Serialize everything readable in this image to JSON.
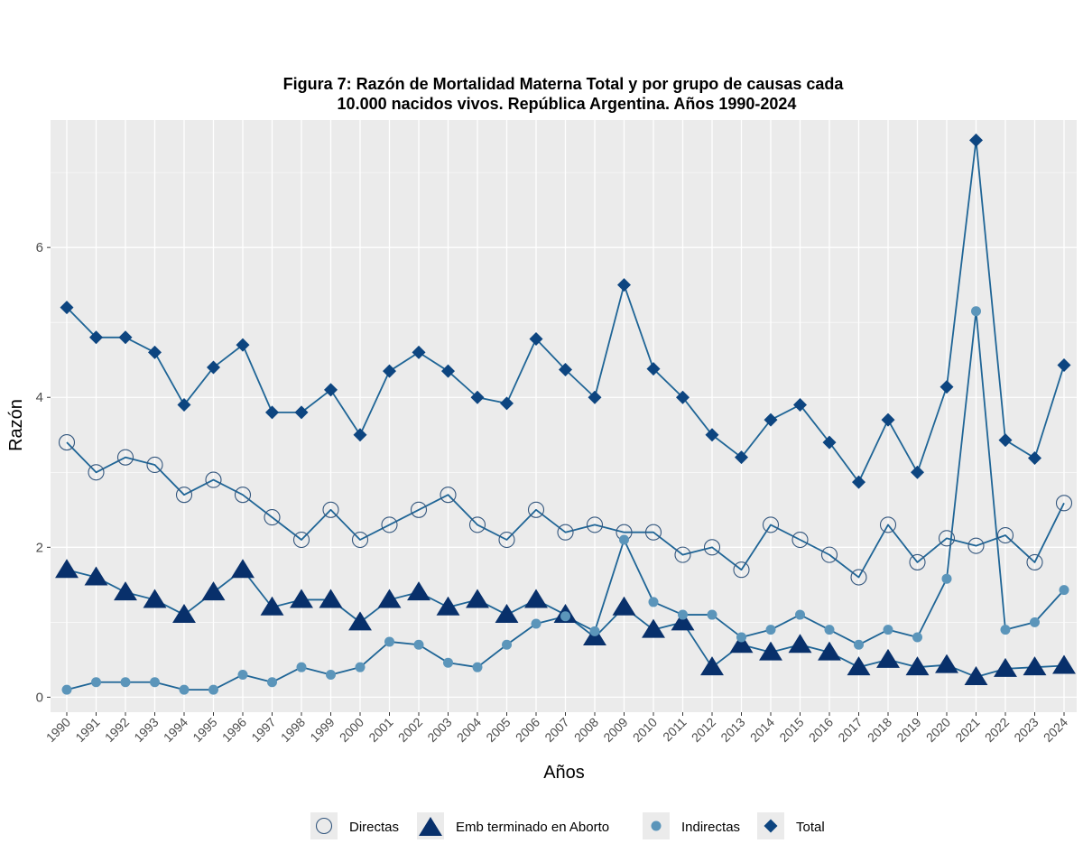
{
  "chart_data": {
    "type": "line",
    "title_line1": "Figura 7: Razón de Mortalidad Materna Total y por grupo de causas cada",
    "title_line2": "10.000 nacidos vivos. República Argentina. Años 1990-2024",
    "xlabel": "Años",
    "ylabel": "Razón",
    "ylim": [
      -0.2,
      7.7
    ],
    "yticks": [
      0,
      2,
      4,
      6
    ],
    "grid": true,
    "legend_position": "bottom",
    "categories": [
      "1990",
      "1991",
      "1992",
      "1993",
      "1994",
      "1995",
      "1996",
      "1997",
      "1998",
      "1999",
      "2000",
      "2001",
      "2002",
      "2003",
      "2004",
      "2005",
      "2006",
      "2007",
      "2008",
      "2009",
      "2010",
      "2011",
      "2012",
      "2013",
      "2014",
      "2015",
      "2016",
      "2017",
      "2018",
      "2019",
      "2020",
      "2021",
      "2022",
      "2023",
      "2024"
    ],
    "series": [
      {
        "name": "Directas",
        "marker": "open-circle",
        "values": [
          3.4,
          3.0,
          3.2,
          3.1,
          2.7,
          2.9,
          2.7,
          2.4,
          2.1,
          2.5,
          2.1,
          2.3,
          2.5,
          2.7,
          2.3,
          2.1,
          2.5,
          2.2,
          2.3,
          2.2,
          2.2,
          1.9,
          2.0,
          1.7,
          2.3,
          2.1,
          1.9,
          1.6,
          2.3,
          1.8,
          2.12,
          2.02,
          2.16,
          1.8,
          2.59
        ]
      },
      {
        "name": "Emb terminado en Aborto",
        "marker": "triangle",
        "values": [
          1.7,
          1.6,
          1.4,
          1.3,
          1.1,
          1.4,
          1.7,
          1.2,
          1.3,
          1.3,
          1.0,
          1.3,
          1.4,
          1.2,
          1.3,
          1.1,
          1.3,
          1.1,
          0.8,
          1.2,
          0.9,
          1.0,
          0.4,
          0.7,
          0.6,
          0.7,
          0.6,
          0.4,
          0.5,
          0.4,
          0.43,
          0.27,
          0.38,
          0.4,
          0.42
        ]
      },
      {
        "name": "Indirectas",
        "marker": "filled-circle",
        "values": [
          0.1,
          0.2,
          0.2,
          0.2,
          0.1,
          0.1,
          0.3,
          0.2,
          0.4,
          0.3,
          0.4,
          0.74,
          0.7,
          0.46,
          0.4,
          0.7,
          0.98,
          1.08,
          0.88,
          2.1,
          1.27,
          1.1,
          1.1,
          0.8,
          0.9,
          1.1,
          0.9,
          0.7,
          0.9,
          0.8,
          1.58,
          5.15,
          0.9,
          1.0,
          1.43
        ]
      },
      {
        "name": "Total",
        "marker": "diamond",
        "values": [
          5.2,
          4.8,
          4.8,
          4.6,
          3.9,
          4.4,
          4.7,
          3.8,
          3.8,
          4.1,
          3.5,
          4.35,
          4.6,
          4.35,
          4.0,
          3.92,
          4.78,
          4.37,
          4.0,
          5.5,
          4.38,
          4.0,
          3.5,
          3.2,
          3.7,
          3.9,
          3.4,
          2.87,
          3.7,
          3.0,
          4.14,
          7.43,
          3.43,
          3.19,
          4.43
        ]
      }
    ]
  },
  "colors": {
    "panel_background": "#ebebeb",
    "grid": "#ffffff",
    "line": "#1f6596",
    "directas_stroke": "#34577e",
    "aborto_fill": "#08306b",
    "indirectas_fill": "#5b95ba",
    "total_fill": "#0d4580"
  }
}
